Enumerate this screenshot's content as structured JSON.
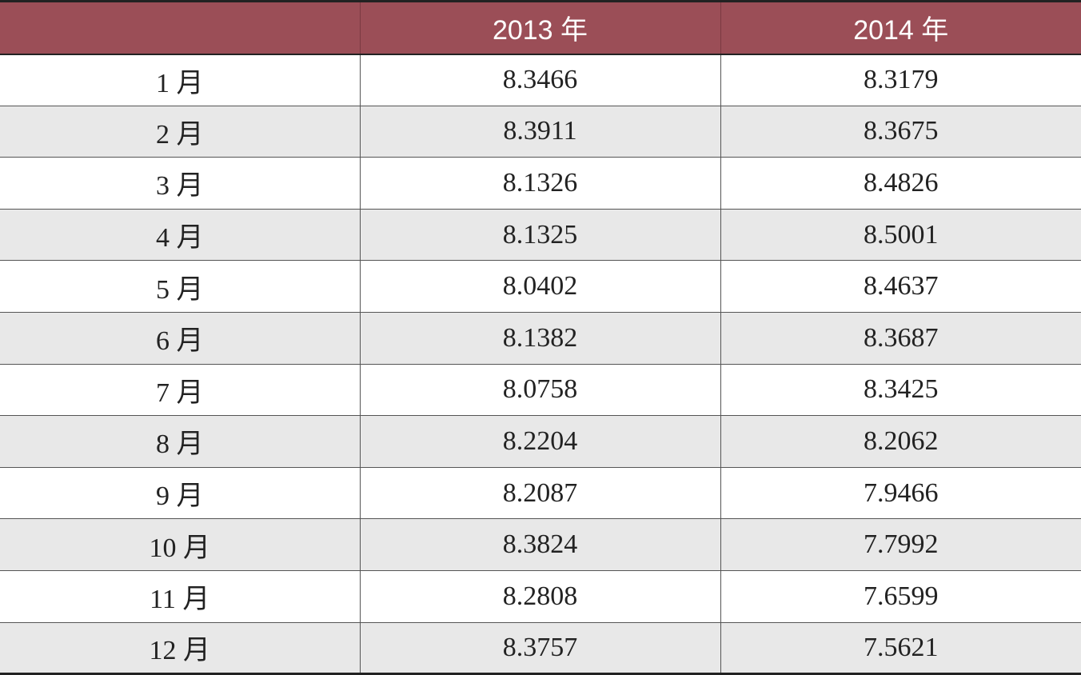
{
  "table": {
    "headers": [
      "",
      "2013 年",
      "2014 年"
    ],
    "rows": [
      {
        "month": "1 月",
        "y2013": "8.3466",
        "y2014": "8.3179"
      },
      {
        "month": "2 月",
        "y2013": "8.3911",
        "y2014": "8.3675"
      },
      {
        "month": "3 月",
        "y2013": "8.1326",
        "y2014": "8.4826"
      },
      {
        "month": "4 月",
        "y2013": "8.1325",
        "y2014": "8.5001"
      },
      {
        "month": "5 月",
        "y2013": "8.0402",
        "y2014": "8.4637"
      },
      {
        "month": "6 月",
        "y2013": "8.1382",
        "y2014": "8.3687"
      },
      {
        "month": "7 月",
        "y2013": "8.0758",
        "y2014": "8.3425"
      },
      {
        "month": "8 月",
        "y2013": "8.2204",
        "y2014": "8.2062"
      },
      {
        "month": "9 月",
        "y2013": "8.2087",
        "y2014": "7.9466"
      },
      {
        "month": "10 月",
        "y2013": "8.3824",
        "y2014": "7.7992"
      },
      {
        "month": "11 月",
        "y2013": "8.2808",
        "y2014": "7.6599"
      },
      {
        "month": "12 月",
        "y2013": "8.3757",
        "y2014": "7.5621"
      }
    ]
  },
  "colors": {
    "header_bg": "#9b4e57",
    "header_text": "#ffffff",
    "row_alt_bg": "#e8e8e8",
    "row_bg": "#ffffff"
  }
}
